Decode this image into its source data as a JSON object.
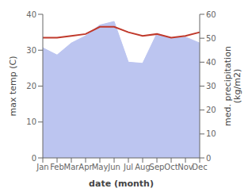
{
  "chart_data": {
    "type": "line",
    "categories": [
      "Jan",
      "Feb",
      "Mar",
      "Apr",
      "May",
      "Jun",
      "Jul",
      "Aug",
      "Sep",
      "Oct",
      "Nov",
      "Dec"
    ],
    "series": [
      {
        "type": "area",
        "axis": "y2",
        "color": "#bcc5f0",
        "values": [
          46.0,
          43.0,
          48.0,
          51.0,
          55.5,
          57.0,
          40.0,
          39.5,
          52.0,
          50.0,
          50.5,
          48.0
        ]
      },
      {
        "type": "line",
        "color": "#c0392b",
        "values": [
          33.5,
          33.5,
          34.0,
          34.5,
          36.5,
          36.5,
          35.0,
          34.0,
          34.5,
          33.5,
          34.0,
          35.0
        ]
      }
    ],
    "xlabel": "date (month)",
    "ylabel": "max temp (C)",
    "y2label": "med. precipitation\n(kg/m2)",
    "ylim": [
      0,
      40
    ],
    "yticks": [
      0,
      10,
      20,
      30,
      40
    ],
    "y2lim": [
      0,
      60
    ],
    "y2ticks": [
      0,
      10,
      20,
      30,
      40,
      50,
      60
    ],
    "grid": false
  }
}
